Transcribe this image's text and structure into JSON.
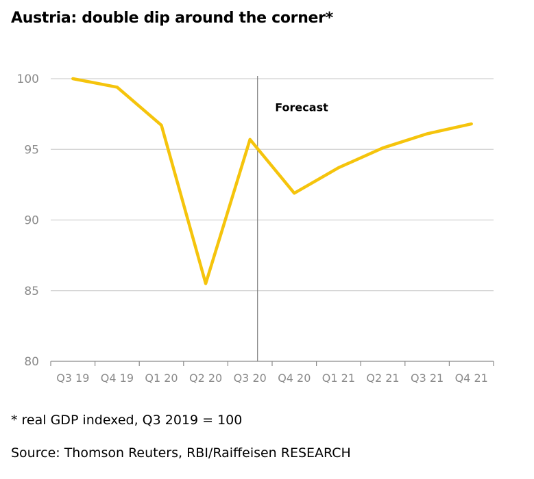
{
  "title": "Austria: double dip around the corner*",
  "footnote": "* real GDP indexed, Q3 2019 = 100",
  "source": "Source: Thomson Reuters, RBI/Raiffeisen RESEARCH",
  "colors": {
    "line": "#F5C40C",
    "grid": "#d0d0d0",
    "axis": "#8a8a8a",
    "divider": "#808080"
  },
  "chart_data": {
    "type": "line",
    "categories": [
      "Q3 19",
      "Q4 19",
      "Q1 20",
      "Q2 20",
      "Q3 20",
      "Q4 20",
      "Q1 21",
      "Q2 21",
      "Q3 21",
      "Q4 21"
    ],
    "series": [
      {
        "values": [
          100.0,
          99.4,
          96.7,
          85.5,
          95.7,
          91.9,
          93.7,
          95.1,
          96.1,
          96.8
        ]
      }
    ],
    "ylim": [
      80,
      100
    ],
    "yticks": [
      100,
      95,
      90,
      85,
      80
    ],
    "grid": true,
    "annotations": [
      {
        "text": "Forecast",
        "x_between": [
          "Q3 20",
          "Q4 20"
        ],
        "y": 98
      }
    ],
    "divider_after": "Q3 20"
  }
}
